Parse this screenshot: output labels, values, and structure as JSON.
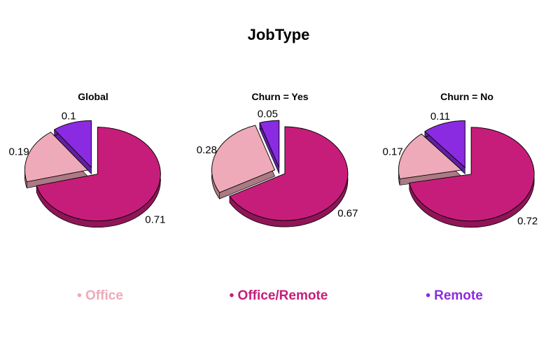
{
  "chart_data": {
    "type": "pie",
    "title": "JobType",
    "categories": [
      "Office",
      "Office/Remote",
      "Remote"
    ],
    "colors": {
      "Office": "#eeaab8",
      "Office/Remote": "#c71d7a",
      "Remote": "#8a2be2"
    },
    "pies": [
      {
        "title": "Global",
        "values": [
          0.19,
          0.71,
          0.1
        ]
      },
      {
        "title": "Churn = Yes",
        "values": [
          0.28,
          0.67,
          0.05
        ]
      },
      {
        "title": "Churn = No",
        "values": [
          0.17,
          0.72,
          0.11
        ]
      }
    ],
    "legend": {
      "position": "bottom",
      "items": [
        "• Office",
        "• Office/Remote",
        "• Remote"
      ]
    },
    "style": "3d-exploded"
  }
}
